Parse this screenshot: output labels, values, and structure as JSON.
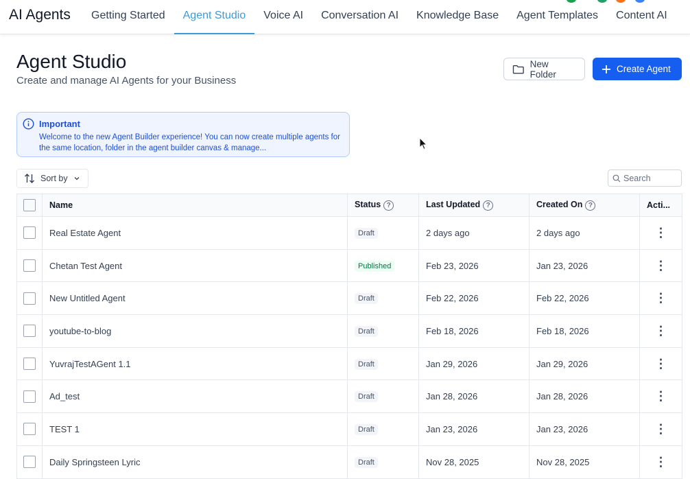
{
  "app": {
    "title": "AI Agents",
    "tabs": [
      {
        "label": "Getting Started"
      },
      {
        "label": "Agent Studio",
        "active": true
      },
      {
        "label": "Voice AI"
      },
      {
        "label": "Conversation AI"
      },
      {
        "label": "Knowledge Base"
      },
      {
        "label": "Agent Templates"
      },
      {
        "label": "Content AI"
      }
    ]
  },
  "page": {
    "title": "Agent Studio",
    "subtitle": "Create and manage AI Agents for your Business",
    "new_folder": "New Folder",
    "create_agent": "Create Agent"
  },
  "alert": {
    "title": "Important",
    "message": "Welcome to the new Agent Builder experience! You can now create multiple agents for the same location, folder in the agent builder canvas & manage..."
  },
  "toolbar": {
    "sort_label": "Sort by",
    "search_placeholder": "Search"
  },
  "table": {
    "columns": {
      "name": "Name",
      "status": "Status",
      "last_updated": "Last Updated",
      "created_on": "Created On",
      "actions": "Acti..."
    },
    "rows": [
      {
        "name": "Real Estate Agent",
        "status": "Draft",
        "last_updated": "2 days ago",
        "created_on": "2 days ago"
      },
      {
        "name": "Chetan Test Agent",
        "status": "Published",
        "last_updated": "Feb 23, 2026",
        "created_on": "Jan 23, 2026"
      },
      {
        "name": "New Untitled Agent",
        "status": "Draft",
        "last_updated": "Feb 22, 2026",
        "created_on": "Feb 22, 2026"
      },
      {
        "name": "youtube-to-blog",
        "status": "Draft",
        "last_updated": "Feb 18, 2026",
        "created_on": "Feb 18, 2026"
      },
      {
        "name": "YuvrajTestAGent 1.1",
        "status": "Draft",
        "last_updated": "Jan 29, 2026",
        "created_on": "Jan 29, 2026"
      },
      {
        "name": "Ad_test",
        "status": "Draft",
        "last_updated": "Jan 28, 2026",
        "created_on": "Jan 28, 2026"
      },
      {
        "name": "TEST 1",
        "status": "Draft",
        "last_updated": "Jan 23, 2026",
        "created_on": "Jan 23, 2026"
      },
      {
        "name": "Daily Springsteen Lyric",
        "status": "Draft",
        "last_updated": "Nov 28, 2025",
        "created_on": "Nov 28, 2025"
      }
    ]
  },
  "colors": {
    "accent": "#155eef",
    "tab_active": "#3b9ad9",
    "published": "#067647"
  }
}
